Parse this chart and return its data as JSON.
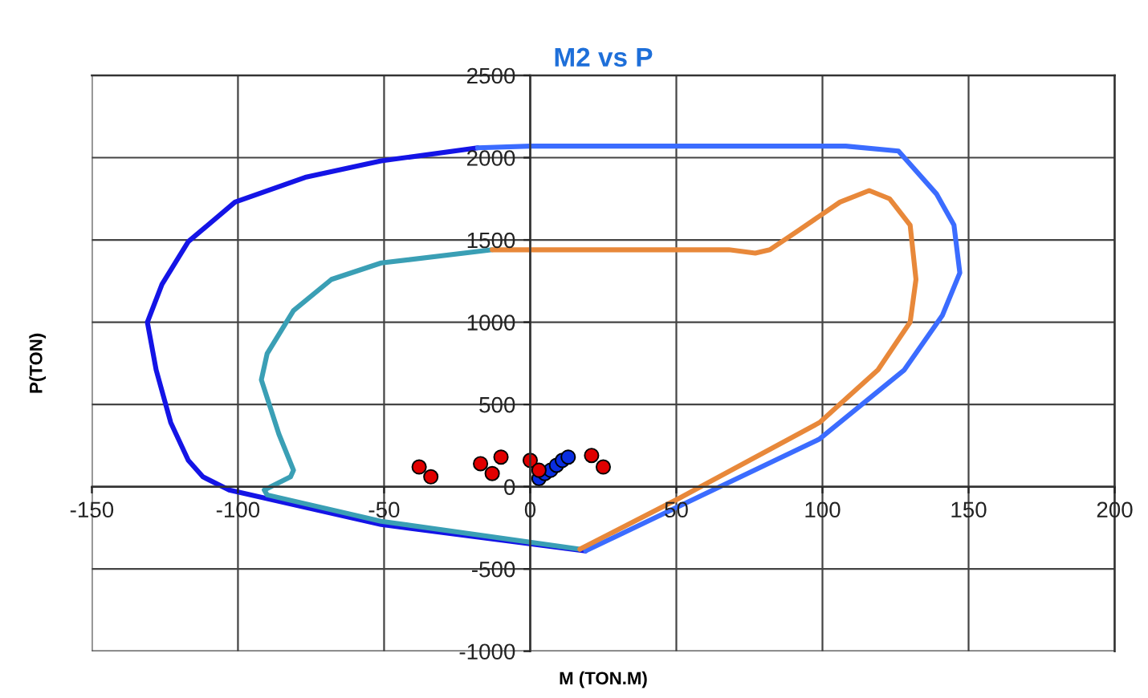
{
  "chart_data": {
    "type": "line",
    "title": "M2 vs P",
    "xlabel": "M (TON.M)",
    "ylabel": "P(TON)",
    "xlim": [
      -150,
      200
    ],
    "ylim": [
      -1000,
      2500
    ],
    "xticks": [
      -150,
      -100,
      -50,
      0,
      50,
      100,
      150,
      200
    ],
    "yticks": [
      -1000,
      -500,
      0,
      500,
      1000,
      1500,
      2000,
      2500
    ],
    "grid": true,
    "marker": "none",
    "line_style": "solid",
    "series": [
      {
        "type": "line",
        "color": "#1414e6",
        "x": [
          -18,
          -51,
          -77,
          -101,
          -117,
          -126,
          -131,
          -128,
          -123,
          -117,
          -112,
          -103,
          -51,
          19
        ],
        "values": [
          2060,
          1980,
          1880,
          1730,
          1490,
          1230,
          1000,
          710,
          390,
          160,
          60,
          -20,
          -230,
          -390
        ]
      },
      {
        "type": "line",
        "color": "#3b6cff",
        "x": [
          19,
          99,
          128,
          141,
          147,
          145,
          139,
          126,
          108,
          0,
          -18
        ],
        "values": [
          -390,
          290,
          710,
          1040,
          1300,
          1590,
          1780,
          2040,
          2070,
          2070,
          2060
        ]
      },
      {
        "type": "line",
        "color": "#3a9fb5",
        "x": [
          -13,
          -51,
          -68,
          -81,
          -90,
          -92,
          -86,
          -81,
          -82,
          -91,
          -90,
          -51,
          17
        ],
        "values": [
          1440,
          1360,
          1260,
          1070,
          810,
          650,
          320,
          100,
          60,
          -20,
          -50,
          -210,
          -380
        ]
      },
      {
        "type": "line",
        "color": "#e8883a",
        "x": [
          17,
          51,
          99,
          119,
          130,
          132,
          130,
          123,
          116,
          106,
          92,
          82,
          77,
          68,
          0,
          -13
        ],
        "values": [
          -380,
          -70,
          390,
          710,
          1000,
          1260,
          1590,
          1750,
          1800,
          1730,
          1560,
          1440,
          1420,
          1440,
          1440,
          1440
        ]
      },
      {
        "type": "scatter",
        "marker": "circle",
        "color": "#e00000",
        "x": [
          -38,
          -34,
          -17,
          -13,
          -10,
          0,
          3,
          21,
          25
        ],
        "values": [
          120,
          60,
          140,
          80,
          180,
          160,
          100,
          190,
          120
        ]
      },
      {
        "type": "scatter",
        "marker": "circle",
        "color": "#0a2ee0",
        "x": [
          3,
          5,
          7,
          9,
          11,
          13
        ],
        "values": [
          50,
          80,
          100,
          130,
          160,
          180
        ]
      }
    ]
  }
}
